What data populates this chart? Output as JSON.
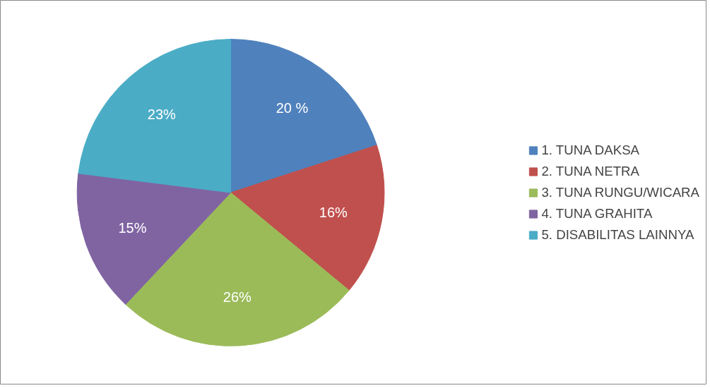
{
  "chart_data": {
    "type": "pie",
    "categories": [
      "1. TUNA DAKSA",
      "2. TUNA NETRA",
      "3. TUNA RUNGU/WICARA",
      "4. TUNA GRAHITA",
      "5. DISABILITAS LAINNYA"
    ],
    "values": [
      20,
      16,
      26,
      15,
      23
    ],
    "colors": [
      "#4f81bd",
      "#c0504d",
      "#9bbb59",
      "#8064a2",
      "#4bacc6"
    ],
    "value_labels": [
      "20 %",
      "16%",
      "26%",
      "15%",
      "23%"
    ],
    "legend": "right"
  }
}
